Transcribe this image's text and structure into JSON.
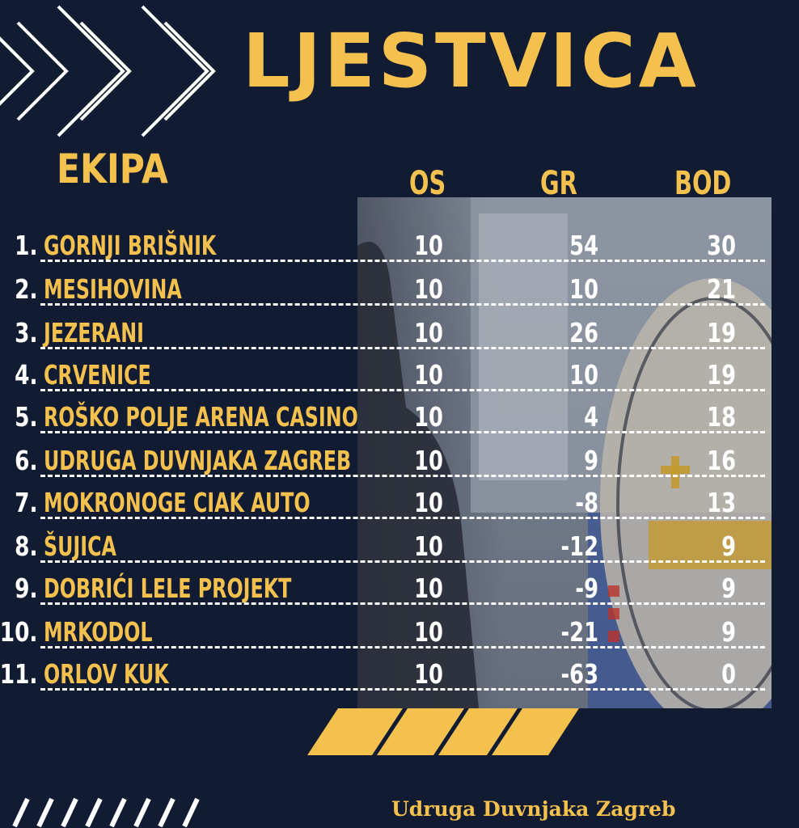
{
  "title": "LJESTVICA",
  "team_header": "EKIPA",
  "columns": {
    "os": "OS",
    "gr": "GR",
    "bod": "BOD"
  },
  "rows": [
    {
      "rank": "1.",
      "team": "GORNJI BRIŠNIK",
      "os": "10",
      "gr": "54",
      "bod": "30"
    },
    {
      "rank": "2.",
      "team": "MESIHOVINA",
      "os": "10",
      "gr": "10",
      "bod": "21"
    },
    {
      "rank": "3.",
      "team": "JEZERANI",
      "os": "10",
      "gr": "26",
      "bod": "19"
    },
    {
      "rank": "4.",
      "team": "CRVENICE",
      "os": "10",
      "gr": "10",
      "bod": "19"
    },
    {
      "rank": "5.",
      "team": "ROŠKO POLJE ARENA CASINO",
      "os": "10",
      "gr": "4",
      "bod": "18"
    },
    {
      "rank": "6.",
      "team": "UDRUGA DUVNJAKA ZAGREB",
      "os": "10",
      "gr": "9",
      "bod": "16"
    },
    {
      "rank": "7.",
      "team": "MOKRONOGE CIAK AUTO",
      "os": "10",
      "gr": "-8",
      "bod": "13"
    },
    {
      "rank": "8.",
      "team": "ŠUJICA",
      "os": "10",
      "gr": "-12",
      "bod": "9"
    },
    {
      "rank": "9.",
      "team": "DOBRIĆI LELE PROJEKT",
      "os": "10",
      "gr": "-9",
      "bod": "9"
    },
    {
      "rank": "10.",
      "team": "MRKODOL",
      "os": "10",
      "gr": "-21",
      "bod": "9"
    },
    {
      "rank": "11.",
      "team": "ORLOV KUK",
      "os": "10",
      "gr": "-63",
      "bod": "0"
    }
  ],
  "footer": "Udruga Duvnjaka Zagreb",
  "colors": {
    "background": "#111b31",
    "accent": "#f4c04e",
    "text": "#ffffff"
  }
}
